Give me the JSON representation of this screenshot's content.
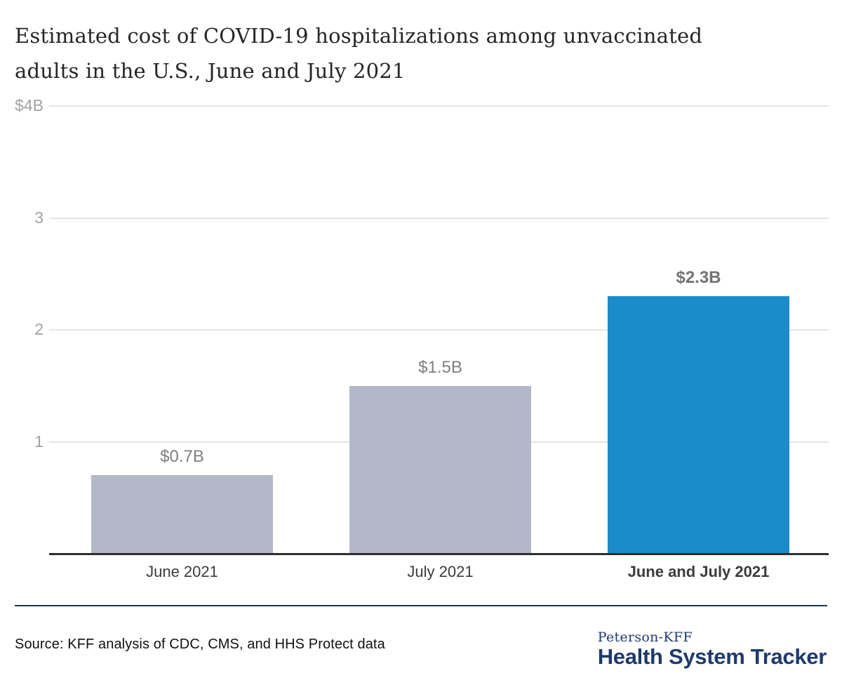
{
  "title_line1": "Estimated cost of COVID-19 hospitalizations among unvaccinated",
  "title_line2": "adults in the U.S., June and July 2021",
  "chart_data": {
    "type": "bar",
    "title": "Estimated cost of COVID-19 hospitalizations among unvaccinated adults in the U.S., June and July 2021",
    "categories": [
      "June 2021",
      "July 2021",
      "June and July 2021"
    ],
    "values": [
      0.7,
      1.5,
      2.3
    ],
    "value_labels": [
      "$0.7B",
      "$1.5B",
      "$2.3B"
    ],
    "bar_colors": [
      "#b2b8c8",
      "#b2b8c8",
      "#1b8bca"
    ],
    "highlight_index": 2,
    "yticks": [
      {
        "value": 1,
        "label": "1"
      },
      {
        "value": 2,
        "label": "2"
      },
      {
        "value": 3,
        "label": "3"
      },
      {
        "value": 4,
        "label": "$4B"
      }
    ],
    "ylim": [
      0,
      4
    ],
    "xlabel": "",
    "ylabel": "",
    "grid": true,
    "legend": false
  },
  "colors": {
    "bar_gray": "#b2b8c8",
    "bar_blue": "#1b8bca",
    "navy": "#17365d",
    "gridline": "#e4e4e4"
  },
  "footer": {
    "source": "Source: KFF analysis of CDC, CMS, and HHS Protect data",
    "logo_top": "Peterson-KFF",
    "logo_bottom": "Health System Tracker"
  }
}
